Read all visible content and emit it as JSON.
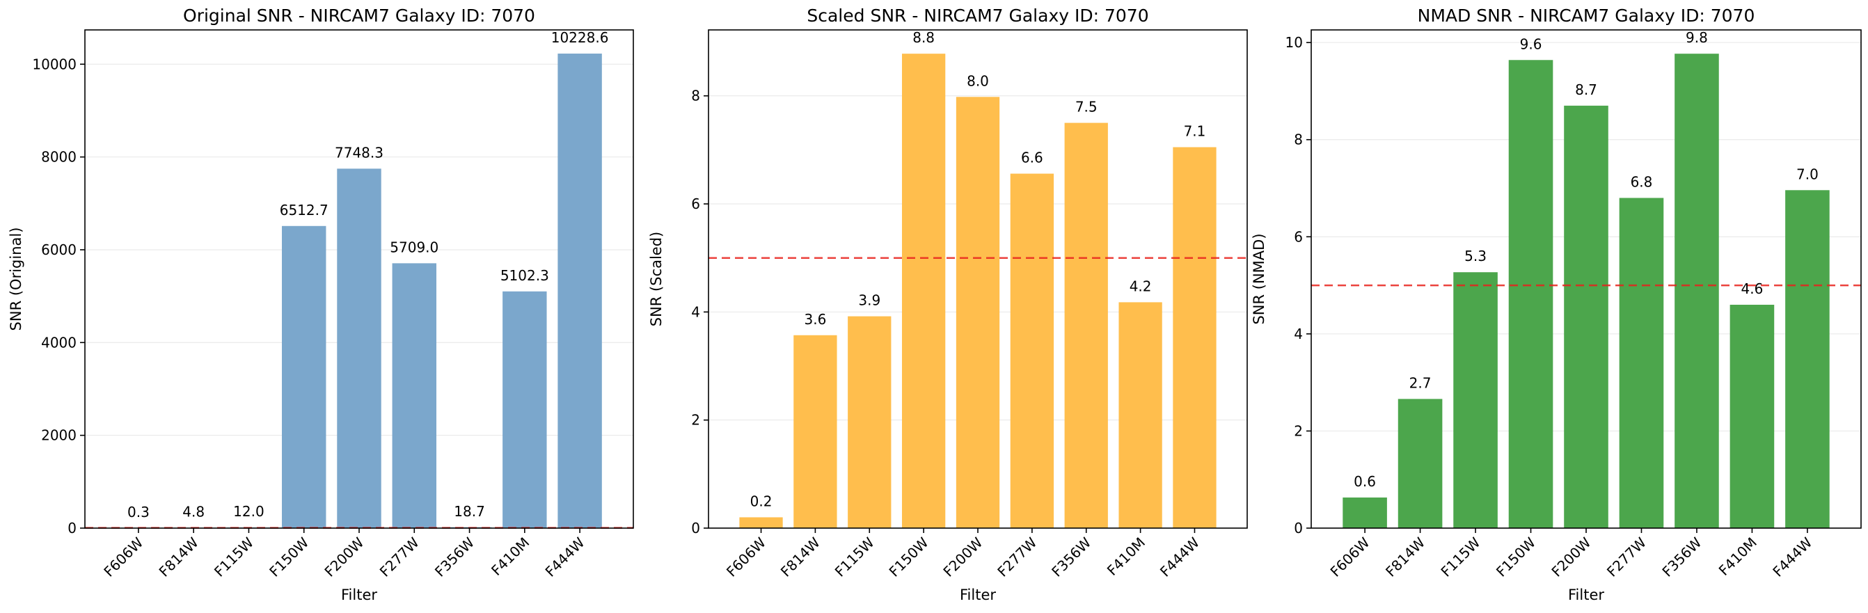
{
  "chart_data": [
    {
      "type": "bar",
      "title": "Original SNR - NIRCAM7 Galaxy ID: 7070",
      "xlabel": "Filter",
      "ylabel": "SNR (Original)",
      "categories": [
        "F606W",
        "F814W",
        "F115W",
        "F150W",
        "F200W",
        "F277W",
        "F356W",
        "F410M",
        "F444W"
      ],
      "values": [
        0.3,
        4.8,
        12.0,
        6512.7,
        7748.3,
        5709.0,
        18.7,
        5102.3,
        10228.6
      ],
      "value_labels": [
        "0.3",
        "4.8",
        "12.0",
        "6512.7",
        "7748.3",
        "5709.0",
        "18.7",
        "5102.3",
        "10228.6"
      ],
      "ylim": [
        0,
        10739
      ],
      "yticks": [
        0,
        2000,
        4000,
        6000,
        8000,
        10000
      ],
      "ytick_labels": [
        "0",
        "2000",
        "4000",
        "6000",
        "8000",
        "10000"
      ],
      "threshold": 5,
      "color": "#7ba7cc",
      "grid": "y"
    },
    {
      "type": "bar",
      "title": "Scaled SNR - NIRCAM7 Galaxy ID: 7070",
      "xlabel": "Filter",
      "ylabel": "SNR (Scaled)",
      "categories": [
        "F606W",
        "F814W",
        "F115W",
        "F150W",
        "F200W",
        "F277W",
        "F356W",
        "F410M",
        "F444W"
      ],
      "values": [
        0.2,
        3.57,
        3.92,
        8.78,
        7.98,
        6.56,
        7.5,
        4.18,
        7.05
      ],
      "value_labels": [
        "0.2",
        "3.6",
        "3.9",
        "8.8",
        "8.0",
        "6.6",
        "7.5",
        "4.2",
        "7.1"
      ],
      "ylim": [
        0,
        9.22
      ],
      "yticks": [
        0,
        2,
        4,
        6,
        8
      ],
      "ytick_labels": [
        "0",
        "2",
        "4",
        "6",
        "8"
      ],
      "threshold": 5,
      "color": "#ffbe4d",
      "grid": "y"
    },
    {
      "type": "bar",
      "title": "NMAD SNR - NIRCAM7 Galaxy ID: 7070",
      "xlabel": "Filter",
      "ylabel": "SNR (NMAD)",
      "categories": [
        "F606W",
        "F814W",
        "F115W",
        "F150W",
        "F200W",
        "F277W",
        "F356W",
        "F410M",
        "F444W"
      ],
      "values": [
        0.63,
        2.66,
        5.27,
        9.64,
        8.7,
        6.8,
        9.77,
        4.6,
        6.96
      ],
      "value_labels": [
        "0.6",
        "2.7",
        "5.3",
        "9.6",
        "8.7",
        "6.8",
        "9.8",
        "4.6",
        "7.0"
      ],
      "ylim": [
        0,
        10.26
      ],
      "yticks": [
        0,
        2,
        4,
        6,
        8,
        10
      ],
      "ytick_labels": [
        "0",
        "2",
        "4",
        "6",
        "8",
        "10"
      ],
      "threshold": 5,
      "color": "#4ca64c",
      "grid": "y"
    }
  ]
}
